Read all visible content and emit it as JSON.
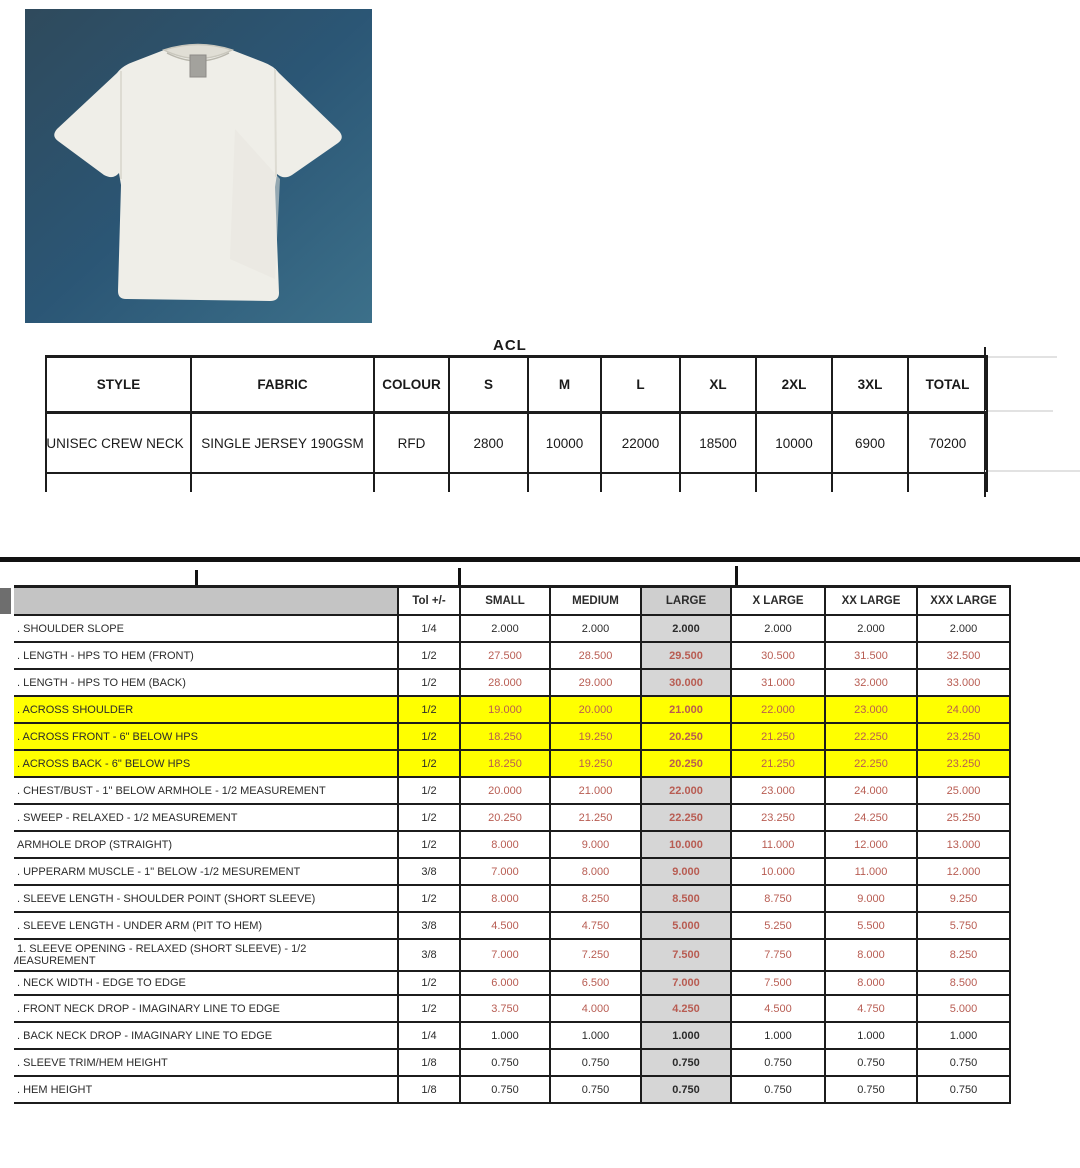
{
  "note_clipped": "ACL",
  "photo": {
    "description": "white short-sleeve crew neck t-shirt laid flat on blue background"
  },
  "order_table": {
    "columns": [
      "STYLE",
      "FABRIC",
      "COLOUR",
      "S",
      "M",
      "L",
      "XL",
      "2XL",
      "3XL",
      "TOTAL"
    ],
    "rows": [
      [
        "UNISEC CREW NECK",
        "SINGLE JERSEY 190GSM",
        "RFD",
        "2800",
        "10000",
        "22000",
        "18500",
        "10000",
        "6900",
        "70200"
      ]
    ]
  },
  "spec_table": {
    "tol_header": "Tol +/-",
    "size_headers": [
      "SMALL",
      "MEDIUM",
      "LARGE",
      "X LARGE",
      "XX LARGE",
      "XXX LARGE"
    ],
    "rows": [
      {
        "label": ". SHOULDER SLOPE",
        "tol": "1/4",
        "values": [
          "2.000",
          "2.000",
          "2.000",
          "2.000",
          "2.000",
          "2.000"
        ],
        "value_color": "black",
        "highlight": false
      },
      {
        "label": ". LENGTH - HPS TO HEM (FRONT)",
        "tol": "1/2",
        "values": [
          "27.500",
          "28.500",
          "29.500",
          "30.500",
          "31.500",
          "32.500"
        ],
        "value_color": "red",
        "highlight": false
      },
      {
        "label": ". LENGTH - HPS TO HEM (BACK)",
        "tol": "1/2",
        "values": [
          "28.000",
          "29.000",
          "30.000",
          "31.000",
          "32.000",
          "33.000"
        ],
        "value_color": "red",
        "highlight": false
      },
      {
        "label": ". ACROSS SHOULDER",
        "tol": "1/2",
        "values": [
          "19.000",
          "20.000",
          "21.000",
          "22.000",
          "23.000",
          "24.000"
        ],
        "value_color": "red",
        "highlight": true
      },
      {
        "label": ". ACROSS FRONT - 6\" BELOW HPS",
        "tol": "1/2",
        "values": [
          "18.250",
          "19.250",
          "20.250",
          "21.250",
          "22.250",
          "23.250"
        ],
        "value_color": "red",
        "highlight": true
      },
      {
        "label": ". ACROSS BACK - 6\" BELOW HPS",
        "tol": "1/2",
        "values": [
          "18.250",
          "19.250",
          "20.250",
          "21.250",
          "22.250",
          "23.250"
        ],
        "value_color": "red",
        "highlight": true
      },
      {
        "label": ". CHEST/BUST - 1\" BELOW ARMHOLE - 1/2 MEASUREMENT",
        "tol": "1/2",
        "values": [
          "20.000",
          "21.000",
          "22.000",
          "23.000",
          "24.000",
          "25.000"
        ],
        "value_color": "red",
        "highlight": false
      },
      {
        "label": ". SWEEP - RELAXED - 1/2 MEASUREMENT",
        "tol": "1/2",
        "values": [
          "20.250",
          "21.250",
          "22.250",
          "23.250",
          "24.250",
          "25.250"
        ],
        "value_color": "red",
        "highlight": false
      },
      {
        "label": "ARMHOLE DROP (STRAIGHT)",
        "tol": "1/2",
        "values": [
          "8.000",
          "9.000",
          "10.000",
          "11.000",
          "12.000",
          "13.000"
        ],
        "value_color": "red",
        "highlight": false
      },
      {
        "label": ". UPPERARM MUSCLE - 1\" BELOW -1/2 MESUREMENT",
        "tol": "3/8",
        "values": [
          "7.000",
          "8.000",
          "9.000",
          "10.000",
          "11.000",
          "12.000"
        ],
        "value_color": "red",
        "highlight": false
      },
      {
        "label": ". SLEEVE LENGTH - SHOULDER POINT (SHORT SLEEVE)",
        "tol": "1/2",
        "values": [
          "8.000",
          "8.250",
          "8.500",
          "8.750",
          "9.000",
          "9.250"
        ],
        "value_color": "red",
        "highlight": false
      },
      {
        "label": ". SLEEVE LENGTH - UNDER ARM (PIT TO HEM)",
        "tol": "3/8",
        "values": [
          "4.500",
          "4.750",
          "5.000",
          "5.250",
          "5.500",
          "5.750"
        ],
        "value_color": "red",
        "highlight": false
      },
      {
        "label": "1. SLEEVE OPENING - RELAXED (SHORT SLEEVE) - 1/2",
        "label2": "MEASUREMENT",
        "tol": "3/8",
        "values": [
          "7.000",
          "7.250",
          "7.500",
          "7.750",
          "8.000",
          "8.250"
        ],
        "value_color": "red",
        "highlight": false,
        "size": "tall"
      },
      {
        "label": ". NECK WIDTH - EDGE TO EDGE",
        "tol": "1/2",
        "values": [
          "6.000",
          "6.500",
          "7.000",
          "7.500",
          "8.000",
          "8.500"
        ],
        "value_color": "red",
        "highlight": false,
        "size": "short"
      },
      {
        "label": ". FRONT NECK DROP - IMAGINARY LINE TO EDGE",
        "tol": "1/2",
        "values": [
          "3.750",
          "4.000",
          "4.250",
          "4.500",
          "4.750",
          "5.000"
        ],
        "value_color": "red",
        "highlight": false
      },
      {
        "label": ". BACK NECK DROP - IMAGINARY LINE TO EDGE",
        "tol": "1/4",
        "values": [
          "1.000",
          "1.000",
          "1.000",
          "1.000",
          "1.000",
          "1.000"
        ],
        "value_color": "black",
        "highlight": false
      },
      {
        "label": ". SLEEVE TRIM/HEM  HEIGHT",
        "tol": "1/8",
        "values": [
          "0.750",
          "0.750",
          "0.750",
          "0.750",
          "0.750",
          "0.750"
        ],
        "value_color": "black",
        "highlight": false
      },
      {
        "label": ". HEM HEIGHT",
        "tol": "1/8",
        "values": [
          "0.750",
          "0.750",
          "0.750",
          "0.750",
          "0.750",
          "0.750"
        ],
        "value_color": "black",
        "highlight": false
      }
    ]
  },
  "colors": {
    "highlight_yellow": "#ffff00",
    "value_red": "#b85c52",
    "large_column_gray": "#d6d6d6",
    "header_gray": "#c4c4c4",
    "photo_bg_dark": "#2f4a5c",
    "photo_bg_mid": "#2b5675",
    "photo_bg_light": "#3c708a",
    "shirt_white": "#efeee8"
  }
}
